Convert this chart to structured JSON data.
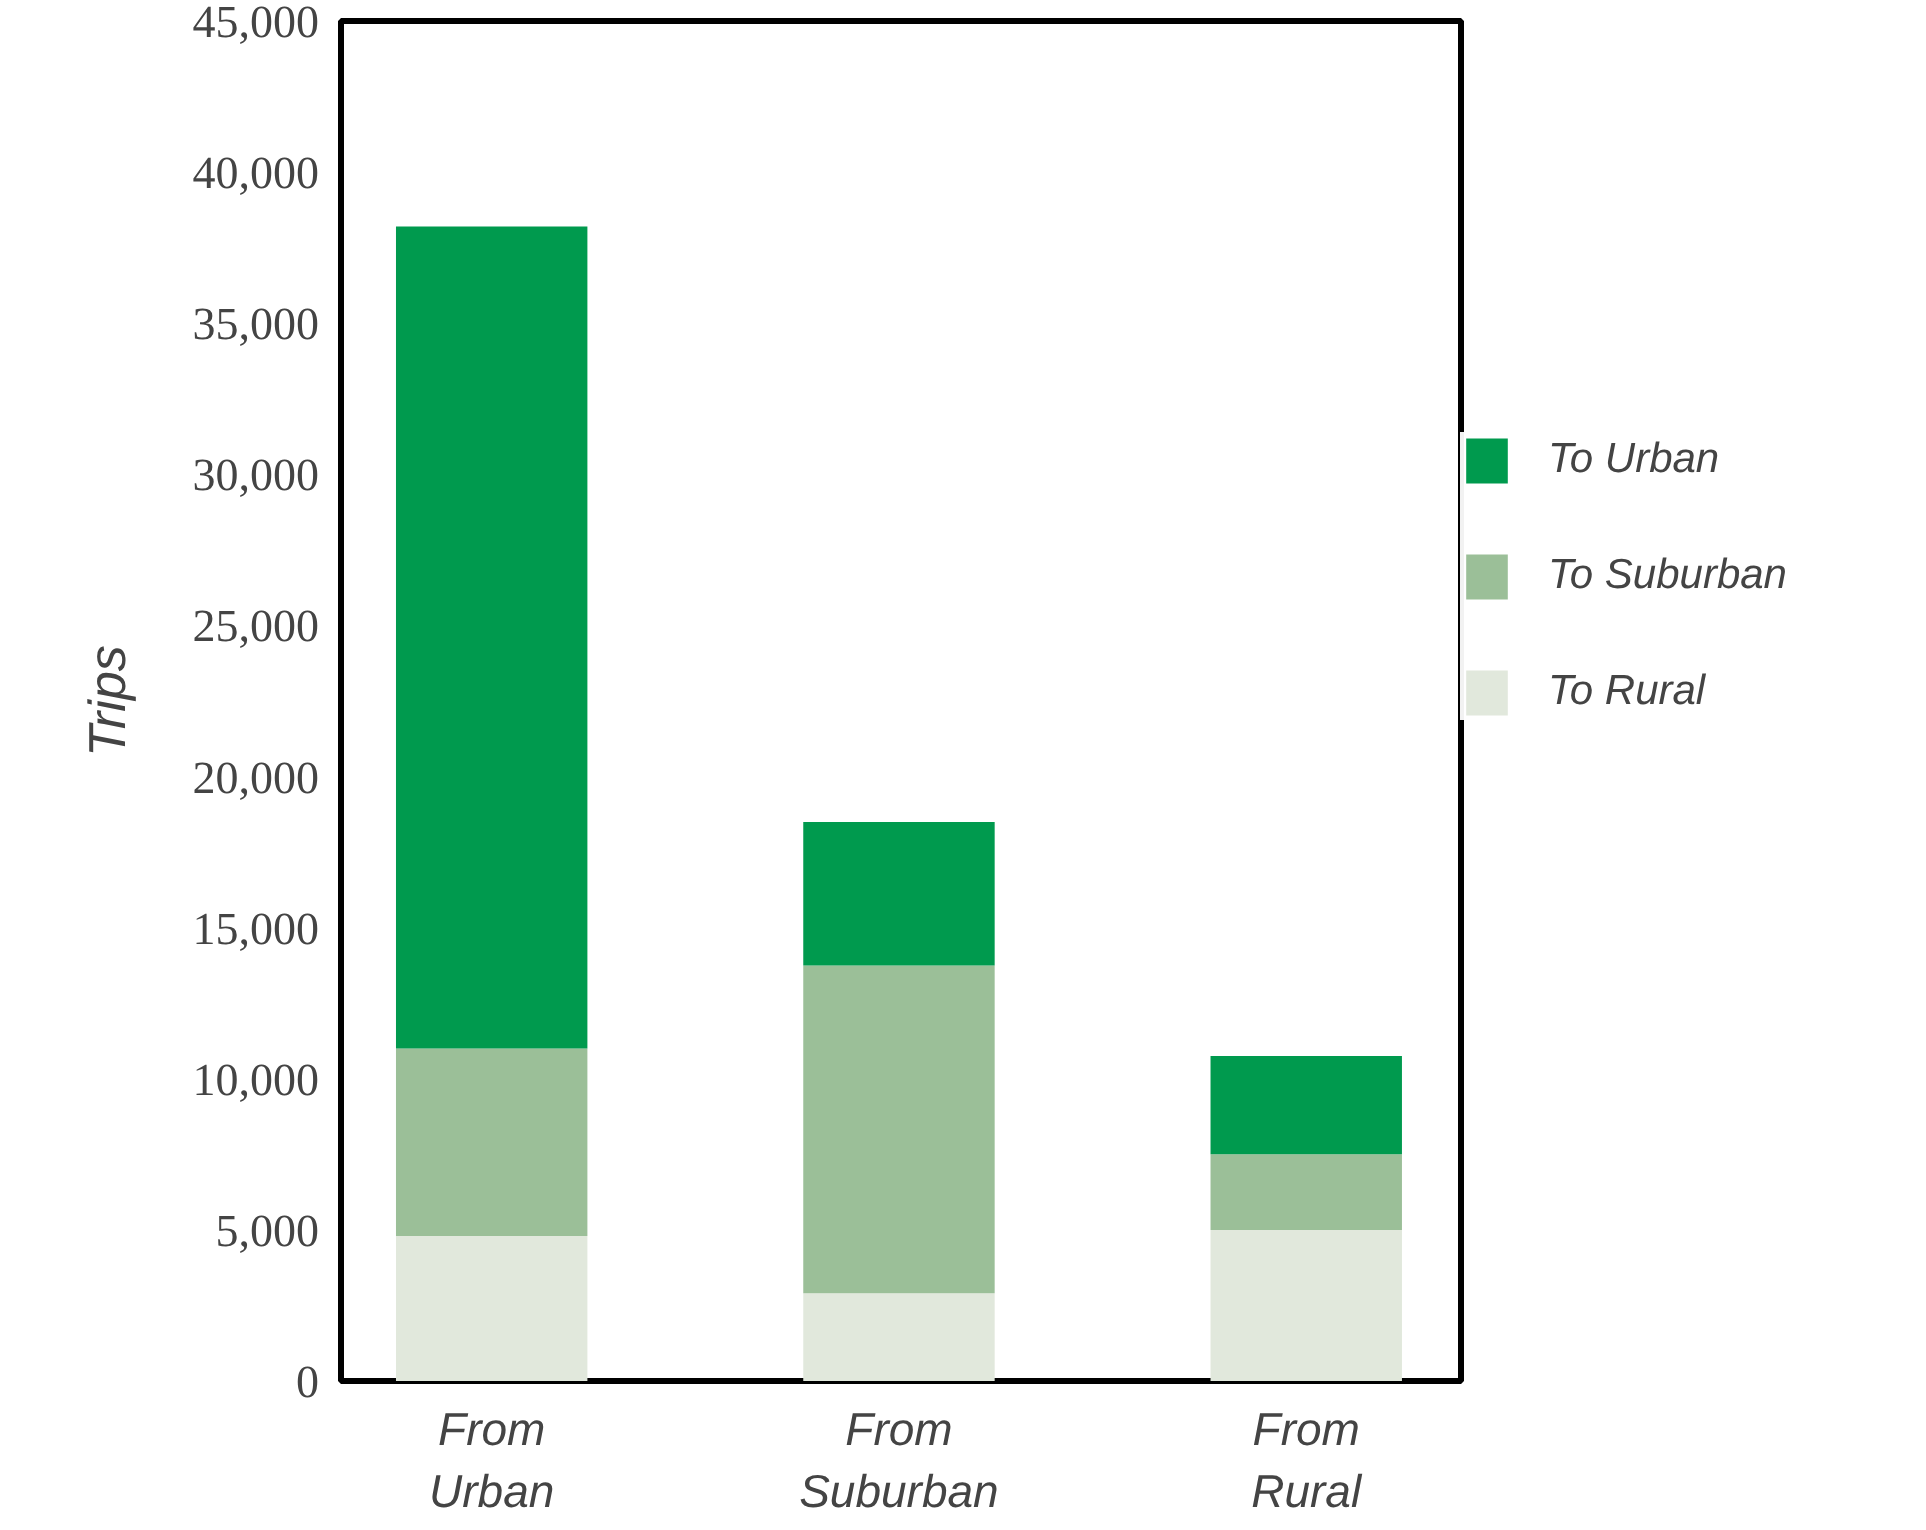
{
  "chart_data": {
    "type": "bar",
    "stacked": true,
    "ylabel": "Trips",
    "categories": [
      "From\nUrban",
      "From\nSuburban",
      "From\nRural"
    ],
    "series": [
      {
        "name": "To Rural",
        "color": "#e1e8dc",
        "values": [
          4800,
          2900,
          5000
        ]
      },
      {
        "name": "To Suburban",
        "color": "#9bbf98",
        "values": [
          6200,
          10850,
          2500
        ]
      },
      {
        "name": "To Urban",
        "color": "#009a4e",
        "values": [
          27200,
          4750,
          3250
        ]
      }
    ],
    "ylim": [
      0,
      45000
    ],
    "yticks": [
      {
        "value": 0,
        "label": "0"
      },
      {
        "value": 5000,
        "label": "5,000"
      },
      {
        "value": 10000,
        "label": "10,000"
      },
      {
        "value": 15000,
        "label": "15,000"
      },
      {
        "value": 20000,
        "label": "20,000"
      },
      {
        "value": 25000,
        "label": "25,000"
      },
      {
        "value": 30000,
        "label": "30,000"
      },
      {
        "value": 35000,
        "label": "35,000"
      },
      {
        "value": 40000,
        "label": "40,000"
      },
      {
        "value": 45000,
        "label": "45,000"
      }
    ],
    "grid": false,
    "legend": "right"
  }
}
